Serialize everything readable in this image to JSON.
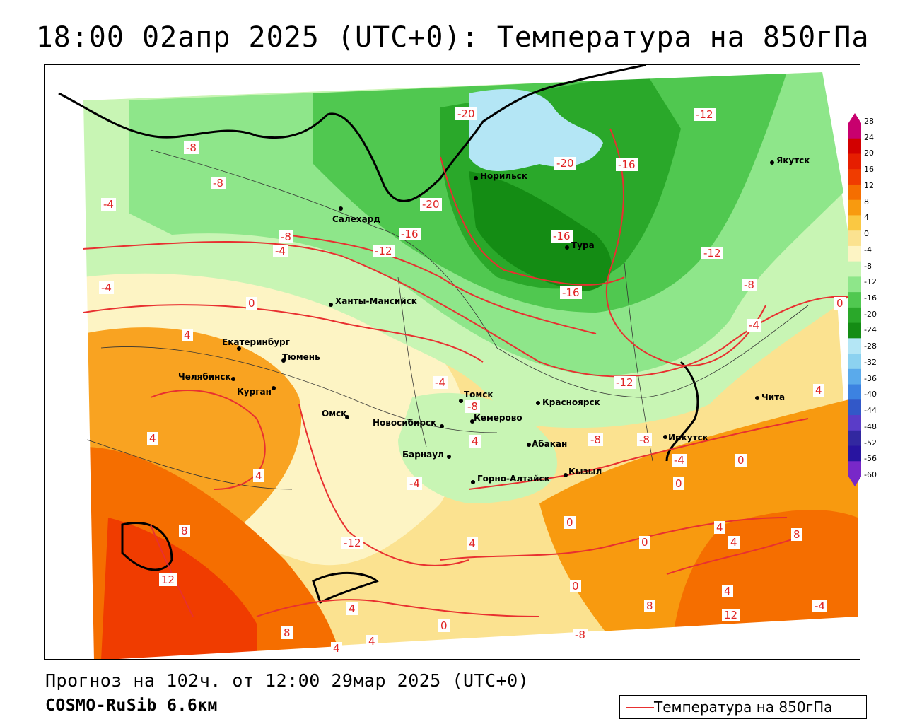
{
  "header": {
    "title": "18:00 02апр 2025 (UTC+0): Температура на 850гПа"
  },
  "footer": {
    "forecast": "Прогноз на 102ч. от 12:00 29мар 2025 (UTC+0)",
    "model": "COSMO-RuSib 6.6км"
  },
  "legend": {
    "label": "Температура на 850гПа",
    "line_color": "#e83030"
  },
  "colorbar": {
    "ticks": [
      "28",
      "24",
      "20",
      "16",
      "12",
      "8",
      "4",
      "0",
      "-4",
      "-8",
      "-12",
      "-16",
      "-20",
      "-24",
      "-28",
      "-32",
      "-36",
      "-40",
      "-44",
      "-48",
      "-52",
      "-56",
      "-60"
    ],
    "colors": [
      "#c8006e",
      "#d20000",
      "#e61e00",
      "#f03c00",
      "#f56e00",
      "#f89a0f",
      "#fac842",
      "#fbe290",
      "#fdf4c4",
      "#c8f5b4",
      "#8ee68a",
      "#50c850",
      "#2aa82a",
      "#148c14",
      "#b4e6f5",
      "#8cd2f0",
      "#5aaaeb",
      "#3c82e1",
      "#3258c8",
      "#5a3cc8",
      "#3228a0",
      "#2814a0",
      "#7828c8"
    ]
  },
  "cities": [
    {
      "name": "Якутск"
    },
    {
      "name": "Норильск"
    },
    {
      "name": "Салехард"
    },
    {
      "name": "Тура"
    },
    {
      "name": "Ханты-Мансийск"
    },
    {
      "name": "Екатеринбург"
    },
    {
      "name": "Тюмень"
    },
    {
      "name": "Челябинск"
    },
    {
      "name": "Курган"
    },
    {
      "name": "Омск"
    },
    {
      "name": "Новосибирск"
    },
    {
      "name": "Томск"
    },
    {
      "name": "Кемерово"
    },
    {
      "name": "Красноярск"
    },
    {
      "name": "Барнаул"
    },
    {
      "name": "Абакан"
    },
    {
      "name": "Горно-Алтайск"
    },
    {
      "name": "Кызыл"
    },
    {
      "name": "Иркутск"
    },
    {
      "name": "Чита"
    }
  ],
  "contour_labels": [
    "-20",
    "-20",
    "-20",
    "-12",
    "-16",
    "-16",
    "-16",
    "-12",
    "-12",
    "-16",
    "-12",
    "-8",
    "-4",
    "-8",
    "-8",
    "-4",
    "-4",
    "-8",
    "-4",
    "0",
    "0",
    "4",
    "4",
    "4",
    "4",
    "4",
    "-4",
    "-8",
    "-8",
    "-8",
    "-4",
    "-4",
    "0",
    "0",
    "0",
    "0",
    "0",
    "4",
    "4",
    "4",
    "4",
    "8",
    "8",
    "8",
    "12",
    "12",
    "8",
    "4",
    "4",
    "0",
    "-12",
    "-8",
    "-4",
    "4"
  ]
}
